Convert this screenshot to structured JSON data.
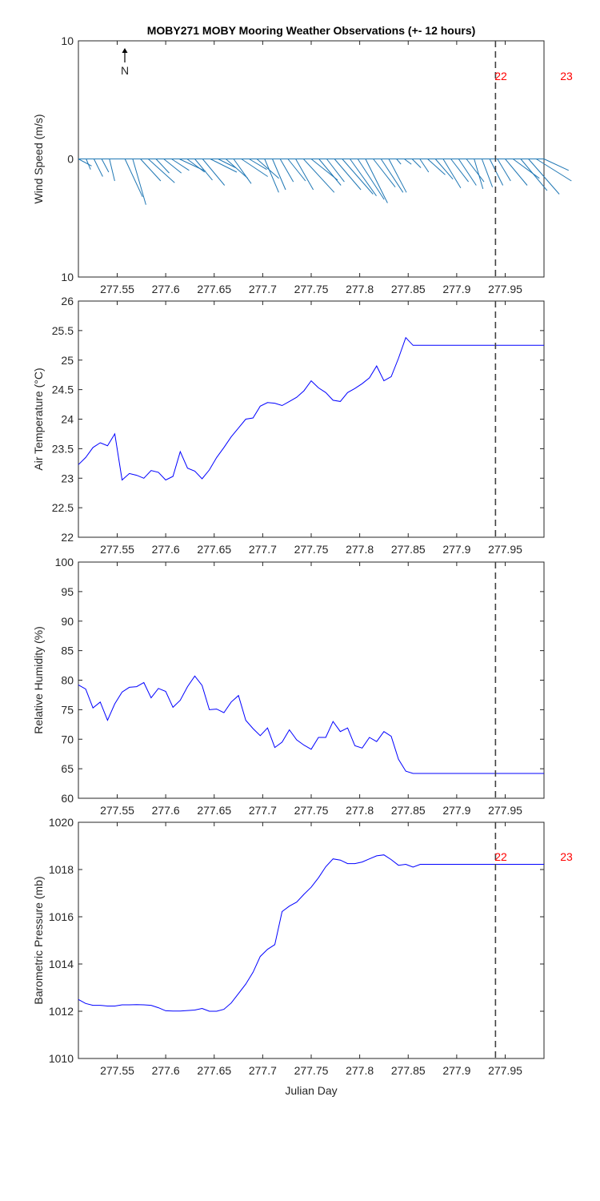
{
  "figure": {
    "title": "MOBY271 MOBY Mooring Weather Observations (+- 12 hours)",
    "xlabel": "Julian Day",
    "north_label": "N",
    "day_labels": [
      "22",
      "23"
    ],
    "colors": {
      "wind": "#1f77b4",
      "line": "#0000ff",
      "marker_line": "#404040",
      "day_label": "#ff0000",
      "axes": "#262626"
    }
  },
  "chart_data": [
    {
      "type": "quiver",
      "id": "wind",
      "ylabel": "Wind Speed (m/s)",
      "xlim": [
        277.51,
        277.99
      ],
      "ylim": [
        -10,
        10
      ],
      "xticks": [
        277.55,
        277.6,
        277.65,
        277.7,
        277.75,
        277.8,
        277.85,
        277.9,
        277.95
      ],
      "xtick_labels": [
        "277.55",
        "277.6",
        "277.65",
        "277.7",
        "277.75",
        "277.8",
        "277.85",
        "277.9",
        "277.95"
      ],
      "yticks": [
        -10,
        0,
        10
      ],
      "ytick_labels": [
        "10",
        "0",
        "10"
      ],
      "vertical_marker": 277.94,
      "day_markers": [
        277.94,
        278.0
      ],
      "vectors": {
        "x": [
          277.51,
          277.518,
          277.526,
          277.534,
          277.542,
          277.55,
          277.558,
          277.566,
          277.574,
          277.582,
          277.59,
          277.598,
          277.606,
          277.614,
          277.622,
          277.63,
          277.638,
          277.646,
          277.654,
          277.662,
          277.67,
          277.678,
          277.686,
          277.694,
          277.702,
          277.71,
          277.718,
          277.726,
          277.734,
          277.742,
          277.75,
          277.758,
          277.766,
          277.774,
          277.782,
          277.79,
          277.798,
          277.806,
          277.814,
          277.822,
          277.83,
          277.838,
          277.846,
          277.854,
          277.862,
          277.87,
          277.878,
          277.886,
          277.894,
          277.902,
          277.91,
          277.918,
          277.926,
          277.934,
          277.942,
          277.95,
          277.958,
          277.966,
          277.974,
          277.982,
          277.99
        ],
        "u": [
          1.5,
          0.5,
          1.0,
          0.8,
          0.6,
          0.5,
          2.0,
          1.5,
          2.3,
          3.0,
          1.5,
          2.0,
          2.0,
          3.0,
          2.0,
          2.0,
          2.5,
          3.0,
          2.0,
          2.5,
          2.0,
          3.0,
          2.0,
          2.5,
          1.6,
          1.5,
          1.5,
          2.0,
          2.0,
          3.5,
          3.0,
          2.5,
          2.0,
          3.0,
          3.5,
          3.0,
          3.0,
          2.5,
          2.5,
          2.5,
          2.0,
          0.5,
          0.8,
          1.0,
          1.0,
          2.0,
          2.0,
          2.0,
          2.0,
          2.0,
          2.0,
          1.0,
          1.2,
          1.5,
          1.5,
          2.5,
          3.0,
          3.0,
          3.5,
          4.0,
          2.8
        ],
        "v": [
          -0.8,
          -1.2,
          -2.0,
          -1.5,
          -2.5,
          0.0,
          -4.3,
          -5.2,
          -2.5,
          -2.7,
          -1.6,
          -1.6,
          -1.3,
          -1.4,
          -1.5,
          -2.4,
          -3.0,
          -1.5,
          -1.0,
          -2.2,
          -2.8,
          -2.0,
          -1.2,
          -2.2,
          -3.8,
          -3.5,
          -2.6,
          -2.5,
          -3.5,
          -3.8,
          -2.4,
          -3.0,
          -2.6,
          -3.5,
          -4.0,
          -4.2,
          -4.6,
          -5.0,
          -3.2,
          -3.8,
          -3.8,
          -0.6,
          -0.6,
          -1.0,
          -1.5,
          -1.8,
          -2.3,
          -3.3,
          -2.6,
          -3.0,
          -2.6,
          -3.4,
          -3.2,
          -3.0,
          -2.5,
          -3.0,
          -2.2,
          -3.6,
          -4.0,
          -2.5,
          -1.3
        ]
      }
    },
    {
      "type": "line",
      "id": "air",
      "ylabel": "Air Temperature (°C)",
      "xlim": [
        277.51,
        277.99
      ],
      "ylim": [
        22,
        26
      ],
      "xticks": [
        277.55,
        277.6,
        277.65,
        277.7,
        277.75,
        277.8,
        277.85,
        277.9,
        277.95
      ],
      "xtick_labels": [
        "277.55",
        "277.6",
        "277.65",
        "277.7",
        "277.75",
        "277.8",
        "277.85",
        "277.9",
        "277.95"
      ],
      "yticks": [
        22,
        22.5,
        23,
        23.5,
        24,
        24.5,
        25,
        25.5,
        26
      ],
      "ytick_labels": [
        "22",
        "22.5",
        "23",
        "23.5",
        "24",
        "24.5",
        "25",
        "25.5",
        "26"
      ],
      "vertical_marker": 277.94,
      "x": [
        277.51,
        277.5175,
        277.525,
        277.5325,
        277.54,
        277.5475,
        277.555,
        277.5625,
        277.57,
        277.5775,
        277.585,
        277.5925,
        277.6,
        277.6075,
        277.615,
        277.6225,
        277.63,
        277.6375,
        277.645,
        277.6525,
        277.66,
        277.6675,
        277.675,
        277.6825,
        277.69,
        277.6975,
        277.705,
        277.7125,
        277.72,
        277.7275,
        277.735,
        277.7425,
        277.75,
        277.7575,
        277.765,
        277.7725,
        277.78,
        277.7875,
        277.795,
        277.8025,
        277.81,
        277.8175,
        277.825,
        277.8325,
        277.84,
        277.8475,
        277.855,
        277.8625,
        277.87,
        277.8775,
        277.885,
        277.8925,
        277.9,
        277.9075,
        277.915,
        277.9225,
        277.93,
        277.9375,
        277.945,
        277.9525,
        277.96,
        277.9675,
        277.975,
        277.9825,
        277.99
      ],
      "y": [
        23.23,
        23.35,
        23.52,
        23.6,
        23.55,
        23.75,
        22.97,
        23.08,
        23.05,
        23.0,
        23.13,
        23.1,
        22.97,
        23.03,
        23.45,
        23.17,
        23.12,
        22.99,
        23.14,
        23.35,
        23.52,
        23.7,
        23.85,
        24.0,
        24.02,
        24.22,
        24.28,
        24.27,
        24.23,
        24.3,
        24.37,
        24.48,
        24.65,
        24.53,
        24.45,
        24.32,
        24.3,
        24.45,
        24.52,
        24.6,
        24.7,
        24.9,
        24.65,
        24.72,
        25.03,
        25.38,
        25.25,
        25.25,
        25.25,
        25.25,
        25.25,
        25.25,
        25.25,
        25.25,
        25.25,
        25.25,
        25.25,
        25.25,
        25.25,
        25.25,
        25.25,
        25.25,
        25.25,
        25.25,
        25.25
      ]
    },
    {
      "type": "line",
      "id": "rh",
      "ylabel": "Relative Humidity (%)",
      "xlim": [
        277.51,
        277.99
      ],
      "ylim": [
        60,
        100
      ],
      "xticks": [
        277.55,
        277.6,
        277.65,
        277.7,
        277.75,
        277.8,
        277.85,
        277.9,
        277.95
      ],
      "xtick_labels": [
        "277.55",
        "277.6",
        "277.65",
        "277.7",
        "277.75",
        "277.8",
        "277.85",
        "277.9",
        "277.95"
      ],
      "yticks": [
        60,
        65,
        70,
        75,
        80,
        85,
        90,
        95,
        100
      ],
      "ytick_labels": [
        "60",
        "65",
        "70",
        "75",
        "80",
        "85",
        "90",
        "95",
        "100"
      ],
      "vertical_marker": 277.94,
      "x": [
        277.51,
        277.5175,
        277.525,
        277.5325,
        277.54,
        277.5475,
        277.555,
        277.5625,
        277.57,
        277.5775,
        277.585,
        277.5925,
        277.6,
        277.6075,
        277.615,
        277.6225,
        277.63,
        277.6375,
        277.645,
        277.6525,
        277.66,
        277.6675,
        277.675,
        277.6825,
        277.69,
        277.6975,
        277.705,
        277.7125,
        277.72,
        277.7275,
        277.735,
        277.7425,
        277.75,
        277.7575,
        277.765,
        277.7725,
        277.78,
        277.7875,
        277.795,
        277.8025,
        277.81,
        277.8175,
        277.825,
        277.8325,
        277.84,
        277.8475,
        277.855,
        277.8625,
        277.87,
        277.8775,
        277.885,
        277.8925,
        277.9,
        277.9075,
        277.915,
        277.9225,
        277.93,
        277.9375,
        277.945,
        277.9525,
        277.96,
        277.9675,
        277.975,
        277.9825,
        277.99
      ],
      "y": [
        79.2,
        78.5,
        75.3,
        76.3,
        73.2,
        76.0,
        78.0,
        78.8,
        78.9,
        79.6,
        77.0,
        78.6,
        78.1,
        75.4,
        76.6,
        78.9,
        80.7,
        79.1,
        75.0,
        75.1,
        74.5,
        76.3,
        77.4,
        73.2,
        71.8,
        70.6,
        71.9,
        68.6,
        69.5,
        71.6,
        69.9,
        69.0,
        68.3,
        70.3,
        70.3,
        73.0,
        71.3,
        71.9,
        68.9,
        68.5,
        70.3,
        69.6,
        71.3,
        70.5,
        66.6,
        64.6,
        64.2,
        64.2,
        64.2,
        64.2,
        64.2,
        64.2,
        64.2,
        64.2,
        64.2,
        64.2,
        64.2,
        64.2,
        64.2,
        64.2,
        64.2,
        64.2,
        64.2,
        64.2,
        64.2
      ]
    },
    {
      "type": "line",
      "id": "bp",
      "ylabel": "Barometric Pressure (mb)",
      "xlabel": "Julian Day",
      "xlim": [
        277.51,
        277.99
      ],
      "ylim": [
        1010,
        1020
      ],
      "xticks": [
        277.55,
        277.6,
        277.65,
        277.7,
        277.75,
        277.8,
        277.85,
        277.9,
        277.95
      ],
      "xtick_labels": [
        "277.55",
        "277.6",
        "277.65",
        "277.7",
        "277.75",
        "277.8",
        "277.85",
        "277.9",
        "277.95"
      ],
      "yticks": [
        1010,
        1012,
        1014,
        1016,
        1018,
        1020
      ],
      "ytick_labels": [
        "1010",
        "1012",
        "1014",
        "1016",
        "1018",
        "1020"
      ],
      "vertical_marker": 277.94,
      "day_markers": [
        277.94,
        278.0
      ],
      "x": [
        277.51,
        277.5175,
        277.525,
        277.5325,
        277.54,
        277.5475,
        277.555,
        277.5625,
        277.57,
        277.5775,
        277.585,
        277.5925,
        277.6,
        277.6075,
        277.615,
        277.6225,
        277.63,
        277.6375,
        277.645,
        277.6525,
        277.66,
        277.6675,
        277.675,
        277.6825,
        277.69,
        277.6975,
        277.705,
        277.7125,
        277.72,
        277.7275,
        277.735,
        277.7425,
        277.75,
        277.7575,
        277.765,
        277.7725,
        277.78,
        277.7875,
        277.795,
        277.8025,
        277.81,
        277.8175,
        277.825,
        277.8325,
        277.84,
        277.8475,
        277.855,
        277.8625,
        277.87,
        277.8775,
        277.885,
        277.8925,
        277.9,
        277.9075,
        277.915,
        277.9225,
        277.93,
        277.9375,
        277.945,
        277.9525,
        277.96,
        277.9675,
        277.975,
        277.9825,
        277.99
      ],
      "y": [
        1012.5,
        1012.33,
        1012.25,
        1012.25,
        1012.22,
        1012.22,
        1012.27,
        1012.27,
        1012.28,
        1012.27,
        1012.25,
        1012.15,
        1012.02,
        1012.01,
        1012.01,
        1012.03,
        1012.05,
        1012.12,
        1012.0,
        1012.0,
        1012.08,
        1012.35,
        1012.75,
        1013.15,
        1013.65,
        1014.32,
        1014.62,
        1014.82,
        1016.22,
        1016.45,
        1016.62,
        1016.95,
        1017.25,
        1017.65,
        1018.12,
        1018.45,
        1018.4,
        1018.25,
        1018.25,
        1018.32,
        1018.45,
        1018.58,
        1018.62,
        1018.42,
        1018.18,
        1018.22,
        1018.1,
        1018.22,
        1018.22,
        1018.22,
        1018.22,
        1018.22,
        1018.22,
        1018.22,
        1018.22,
        1018.22,
        1018.22,
        1018.22,
        1018.22,
        1018.22,
        1018.22,
        1018.22,
        1018.22,
        1018.22,
        1018.22
      ]
    }
  ]
}
